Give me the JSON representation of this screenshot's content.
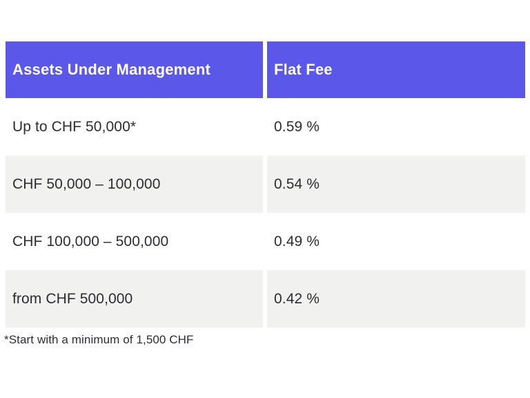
{
  "chart_data": {
    "type": "table",
    "columns": [
      "Assets Under Management",
      "Flat Fee"
    ],
    "rows": [
      {
        "assets": "Up to CHF 50,000*",
        "fee": "0.59 %"
      },
      {
        "assets": "CHF 50,000 – 100,000",
        "fee": "0.54 %"
      },
      {
        "assets": "CHF 100,000 – 500,000",
        "fee": "0.49 %"
      },
      {
        "assets": "from CHF 500,000",
        "fee": "0.42 %"
      }
    ],
    "footnote": "*Start with a minimum of 1,500 CHF",
    "layout": "two-column fee table, alternating row shading, header row highlighted"
  },
  "colors": {
    "header_bg": "#5a57e9",
    "header_text": "#ffffff",
    "row_alt_bg": "#f1f1ef",
    "row_bg": "#ffffff",
    "body_text": "#2c2c33",
    "gutter": "#ffffff"
  }
}
